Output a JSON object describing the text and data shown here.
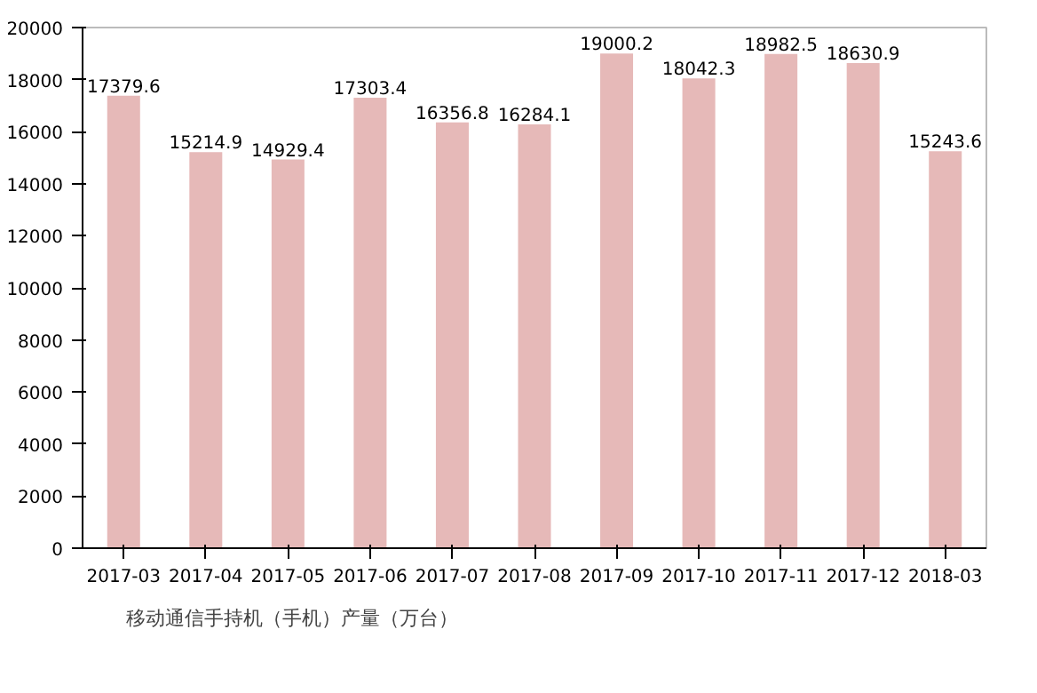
{
  "chart_data": {
    "type": "bar",
    "categories": [
      "2017-03",
      "2017-04",
      "2017-05",
      "2017-06",
      "2017-07",
      "2017-08",
      "2017-09",
      "2017-10",
      "2017-11",
      "2017-12",
      "2018-03"
    ],
    "series": [
      {
        "name": "移动通信手持机（手机）产量（万台）",
        "color": "#e6b9b8",
        "values": [
          17379.6,
          15214.9,
          14929.4,
          17303.4,
          16356.8,
          16284.1,
          19000.2,
          18042.3,
          18982.5,
          18630.9,
          15243.6
        ]
      }
    ],
    "ylim": [
      0,
      20000
    ],
    "yticks": [
      0,
      2000,
      4000,
      6000,
      8000,
      10000,
      12000,
      14000,
      16000,
      18000,
      20000
    ],
    "data_labels": true,
    "legend": "bottom left"
  }
}
